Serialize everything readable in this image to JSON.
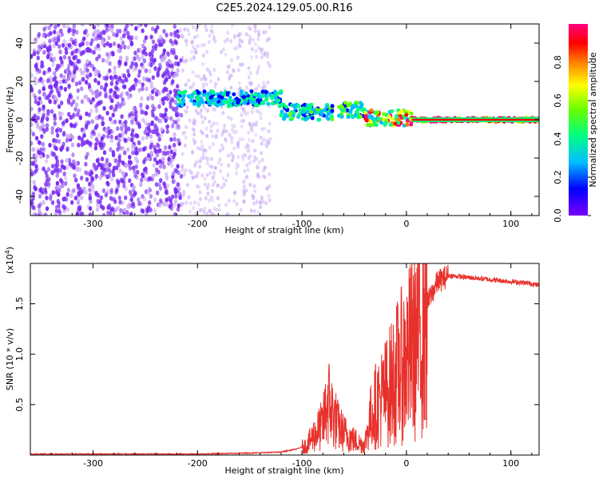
{
  "title": "C2E5.2024.129.05.00.R16",
  "colors": {
    "snr_line": "#e8302b",
    "spectrum_dots": "#7a2cf2",
    "spectrum_faint": "#c9a9f6",
    "colorbar": [
      "#7a00ff",
      "#0000ff",
      "#00bfff",
      "#00ff80",
      "#66ff00",
      "#ffff00",
      "#ff8000",
      "#ff0000",
      "#ff007f"
    ]
  },
  "chart_data": [
    {
      "type": "heatmap",
      "xlabel": "Height of straight line (km)",
      "ylabel": "Frequency (Hz)",
      "xlim": [
        -360,
        127
      ],
      "ylim": [
        -50,
        50
      ],
      "xticks": [
        -300,
        -200,
        -100,
        0,
        100
      ],
      "yticks": [
        -40,
        -20,
        0,
        20,
        40
      ],
      "tick_labels_x": [
        "-300",
        "-200",
        "-100",
        "0",
        "100"
      ],
      "tick_labels_y": [
        "-40",
        "-20",
        "0",
        "20",
        "40"
      ],
      "colorbar": {
        "label": "Normalized spectral amplitude",
        "range": [
          0.0,
          1.0
        ],
        "ticks": [
          0.0,
          0.2,
          0.4,
          0.6,
          0.8
        ],
        "tick_labels": [
          "0.0",
          "0.2",
          "0.4",
          "0.6",
          "0.8"
        ]
      },
      "features": [
        {
          "x_start": -360,
          "x_end": -215,
          "freq_range": [
            -50,
            50
          ],
          "amplitude": 0.05
        },
        {
          "x_start": -215,
          "x_end": -130,
          "freq_range": [
            -50,
            50
          ],
          "amplitude": 0.02
        },
        {
          "x_start": -220,
          "x_end": -120,
          "freq_center": 11,
          "amplitude": 0.35
        },
        {
          "x_start": -120,
          "x_end": -70,
          "freq_center": 4,
          "amplitude": 0.4
        },
        {
          "x_start": -65,
          "x_end": -40,
          "freq_center": 5,
          "amplitude": 0.45
        },
        {
          "x_start": -40,
          "x_end": 5,
          "freq_center": 1,
          "amplitude": 0.7
        },
        {
          "x_start": 5,
          "x_end": 127,
          "freq_center": 0,
          "amplitude": 0.95
        }
      ]
    },
    {
      "type": "line",
      "xlabel": "Height of straight line (km)",
      "ylabel": "SNR (10 * v/v)",
      "y_multiplier": "(x10",
      "y_multiplier_exp": "4",
      "y_multiplier_close": ")",
      "xlim": [
        -360,
        127
      ],
      "ylim": [
        0,
        1.9
      ],
      "xticks": [
        -300,
        -200,
        -100,
        0,
        100
      ],
      "yticks": [
        0.5,
        1.0,
        1.5
      ],
      "tick_labels_x": [
        "-300",
        "-200",
        "-100",
        "0",
        "100"
      ],
      "tick_labels_y": [
        "0.5",
        "1.0",
        "1.5"
      ],
      "series": [
        {
          "x": [
            -360,
            -300,
            -250,
            -200,
            -150,
            -120,
            -105,
            -95,
            -90,
            -80,
            -75,
            -72,
            -65,
            -60,
            -50,
            -45,
            -40,
            -35,
            -30,
            -25,
            -20,
            -15,
            -10,
            -5,
            0,
            5,
            10,
            15,
            20,
            25,
            30,
            40,
            50,
            60,
            70,
            80,
            90,
            100,
            110,
            120,
            127
          ],
          "y": [
            0.01,
            0.01,
            0.01,
            0.01,
            0.02,
            0.03,
            0.06,
            0.1,
            0.18,
            0.3,
            0.55,
            0.45,
            0.28,
            0.22,
            0.15,
            0.12,
            0.1,
            0.35,
            0.48,
            0.55,
            0.62,
            0.7,
            0.8,
            0.88,
            0.95,
            1.05,
            1.15,
            1.35,
            1.5,
            1.62,
            1.72,
            1.78,
            1.77,
            1.76,
            1.75,
            1.74,
            1.73,
            1.72,
            1.71,
            1.7,
            1.68
          ]
        }
      ]
    }
  ]
}
